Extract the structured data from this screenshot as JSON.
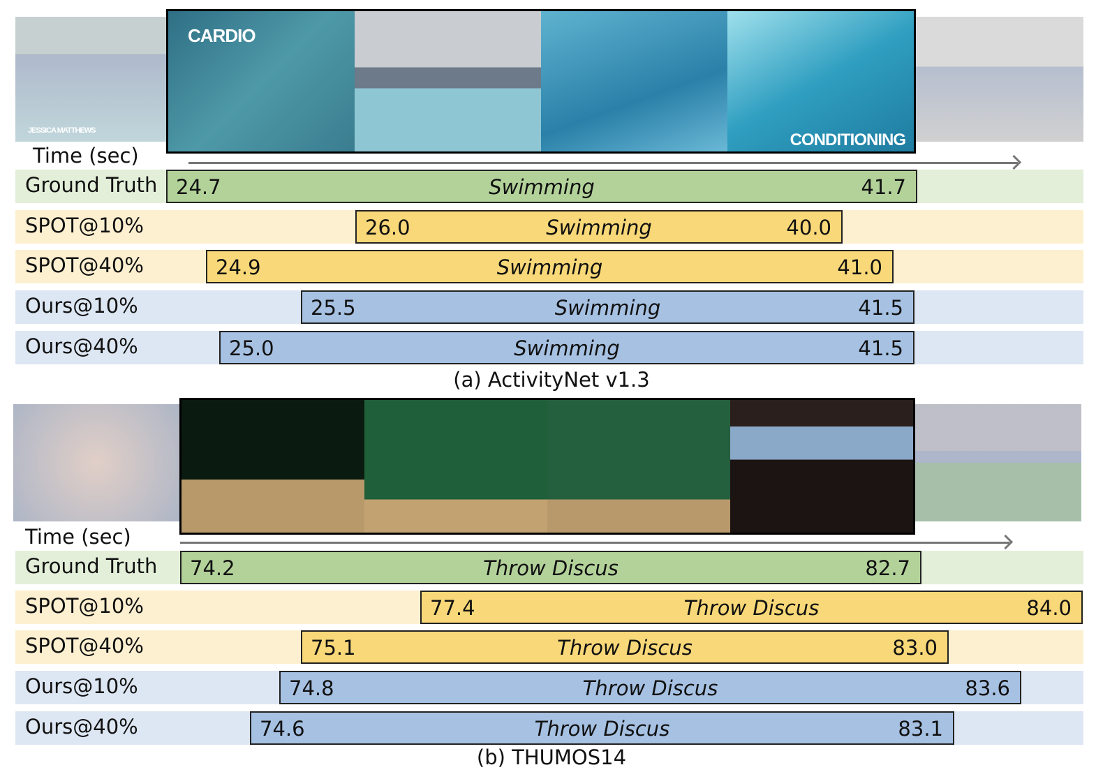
{
  "panels": [
    {
      "caption": "(a) ActivityNet v1.3",
      "time_label": "Time (sec)",
      "frame_overlays": {
        "first": "CARDIO",
        "last": "CONDITIONING",
        "side": "JESSICA MATTHEWS"
      },
      "rows": [
        {
          "label": "Ground Truth",
          "method": "ground-truth",
          "start": "24.7",
          "end": "41.7",
          "action": "Swimming"
        },
        {
          "label": "SPOT@10%",
          "method": "spot",
          "start": "26.0",
          "end": "40.0",
          "action": "Swimming"
        },
        {
          "label": "SPOT@40%",
          "method": "spot",
          "start": "24.9",
          "end": "41.0",
          "action": "Swimming"
        },
        {
          "label": "Ours@10%",
          "method": "ours",
          "start": "25.5",
          "end": "41.5",
          "action": "Swimming"
        },
        {
          "label": "Ours@40%",
          "method": "ours",
          "start": "25.0",
          "end": "41.5",
          "action": "Swimming"
        }
      ]
    },
    {
      "caption": "(b) THUMOS14",
      "time_label": "Time (sec)",
      "rows": [
        {
          "label": "Ground Truth",
          "method": "ground-truth",
          "start": "74.2",
          "end": "82.7",
          "action": "Throw Discus"
        },
        {
          "label": "SPOT@10%",
          "method": "spot",
          "start": "77.4",
          "end": "84.0",
          "action": "Throw Discus"
        },
        {
          "label": "SPOT@40%",
          "method": "spot",
          "start": "75.1",
          "end": "83.0",
          "action": "Throw Discus"
        },
        {
          "label": "Ours@10%",
          "method": "ours",
          "start": "74.8",
          "end": "83.6",
          "action": "Throw Discus"
        },
        {
          "label": "Ours@40%",
          "method": "ours",
          "start": "74.6",
          "end": "83.1",
          "action": "Throw Discus"
        }
      ]
    }
  ],
  "colors": {
    "ground-truth": {
      "bar": "#b3d29a",
      "bg": "#e3efd9"
    },
    "spot": {
      "bar": "#f8d878",
      "bg": "#fdf0d0"
    },
    "ours": {
      "bar": "#a6c1e2",
      "bg": "#dde7f3"
    }
  }
}
